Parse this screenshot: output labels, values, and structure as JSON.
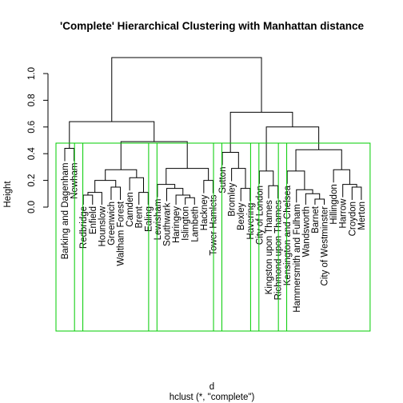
{
  "chart_data": {
    "type": "dendrogram",
    "title": "'Complete' Hierarchical Clustering with Manhattan distance",
    "ylabel": "Height",
    "xlabel": "d",
    "sub": "hclust (*, \"complete\")",
    "ylim": [
      0,
      1.2
    ],
    "yticks": [
      0.0,
      0.2,
      0.4,
      0.6,
      0.8,
      1.0
    ],
    "ytick_labels": [
      "0.0",
      "0.2",
      "0.4",
      "0.6",
      "0.8",
      "1.0"
    ],
    "leaves": [
      "Barking and Dagenham",
      "Newham",
      "Redbridge",
      "Enfield",
      "Hounslow",
      "Greenwich",
      "Waltham Forest",
      "Camden",
      "Brent",
      "Ealing",
      "Lewisham",
      "Southwark",
      "Haringey",
      "Islington",
      "Lambeth",
      "Hackney",
      "Tower Hamlets",
      "Sutton",
      "Bromley",
      "Bexley",
      "Havering",
      "City of London",
      "Kingston upon Thames",
      "Richmond upon Thames",
      "Kensington and Chelsea",
      "Hammersmith and Fulham",
      "Wandsworth",
      "Barnet",
      "City of Westminster",
      "Hillingdon",
      "Harrow",
      "Croydon",
      "Merton"
    ],
    "merges": [
      {
        "a": "L:Barking and Dagenham",
        "b": "L:Newham",
        "h": 0.44,
        "id": "bn"
      },
      {
        "a": "L:Redbridge",
        "b": "L:Enfield",
        "h": 0.09,
        "id": "re"
      },
      {
        "a": "N:re",
        "b": "L:Hounslow",
        "h": 0.11,
        "id": "reh"
      },
      {
        "a": "L:Greenwich",
        "b": "L:Waltham Forest",
        "h": 0.15,
        "id": "gw"
      },
      {
        "a": "N:reh",
        "b": "N:gw",
        "h": 0.2,
        "id": "o1"
      },
      {
        "a": "L:Brent",
        "b": "L:Ealing",
        "h": 0.11,
        "id": "be"
      },
      {
        "a": "L:Camden",
        "b": "N:be",
        "h": 0.22,
        "id": "cbe"
      },
      {
        "a": "N:o1",
        "b": "N:cbe",
        "h": 0.28,
        "id": "outer"
      },
      {
        "a": "L:Islington",
        "b": "L:Lambeth",
        "h": 0.07,
        "id": "il"
      },
      {
        "a": "L:Haringey",
        "b": "N:il",
        "h": 0.09,
        "id": "hil"
      },
      {
        "a": "L:Southwark",
        "b": "N:hil",
        "h": 0.14,
        "id": "shil"
      },
      {
        "a": "L:Lewisham",
        "b": "N:shil",
        "h": 0.17,
        "id": "lsh"
      },
      {
        "a": "L:Hackney",
        "b": "L:Tower Hamlets",
        "h": 0.2,
        "id": "ht"
      },
      {
        "a": "N:lsh",
        "b": "N:ht",
        "h": 0.29,
        "id": "inner"
      },
      {
        "a": "N:outer",
        "b": "N:inner",
        "h": 0.49,
        "id": "oi"
      },
      {
        "a": "N:bn",
        "b": "N:oi",
        "h": 0.64,
        "id": "left"
      },
      {
        "a": "L:Bexley",
        "b": "L:Havering",
        "h": 0.14,
        "id": "bh"
      },
      {
        "a": "L:Bromley",
        "b": "N:bh",
        "h": 0.29,
        "id": "bbh"
      },
      {
        "a": "L:Sutton",
        "b": "N:bbh",
        "h": 0.41,
        "id": "sutt"
      },
      {
        "a": "L:Kingston upon Thames",
        "b": "L:Richmond upon Thames",
        "h": 0.16,
        "id": "kr"
      },
      {
        "a": "L:City of London",
        "b": "N:kr",
        "h": 0.27,
        "id": "ckr"
      },
      {
        "a": "L:Barnet",
        "b": "L:City of Westminster",
        "h": 0.06,
        "id": "bw"
      },
      {
        "a": "L:Wandsworth",
        "b": "N:bw",
        "h": 0.1,
        "id": "wbw"
      },
      {
        "a": "L:Hammersmith and Fulham",
        "b": "N:wbw",
        "h": 0.13,
        "id": "hwbw"
      },
      {
        "a": "L:Kensington and Chelsea",
        "b": "N:hwbw",
        "h": 0.27,
        "id": "khw"
      },
      {
        "a": "L:Croydon",
        "b": "L:Merton",
        "h": 0.15,
        "id": "cm"
      },
      {
        "a": "L:Harrow",
        "b": "N:cm",
        "h": 0.17,
        "id": "hcm"
      },
      {
        "a": "L:Hillingdon",
        "b": "N:hcm",
        "h": 0.28,
        "id": "hill"
      },
      {
        "a": "N:khw",
        "b": "N:hill",
        "h": 0.43,
        "id": "kh"
      },
      {
        "a": "N:ckr",
        "b": "N:kh",
        "h": 0.6,
        "id": "ckh"
      },
      {
        "a": "N:sutt",
        "b": "N:ckh",
        "h": 0.71,
        "id": "right"
      },
      {
        "a": "N:left",
        "b": "N:right",
        "h": 1.12,
        "id": "root"
      }
    ],
    "cluster_rect_color": "#00cc00",
    "clusters": [
      {
        "from": 0,
        "to": 1
      },
      {
        "from": 2,
        "to": 9
      },
      {
        "from": 10,
        "to": 16
      },
      {
        "from": 17,
        "to": 20
      },
      {
        "from": 21,
        "to": 23
      },
      {
        "from": 24,
        "to": 32
      }
    ]
  }
}
